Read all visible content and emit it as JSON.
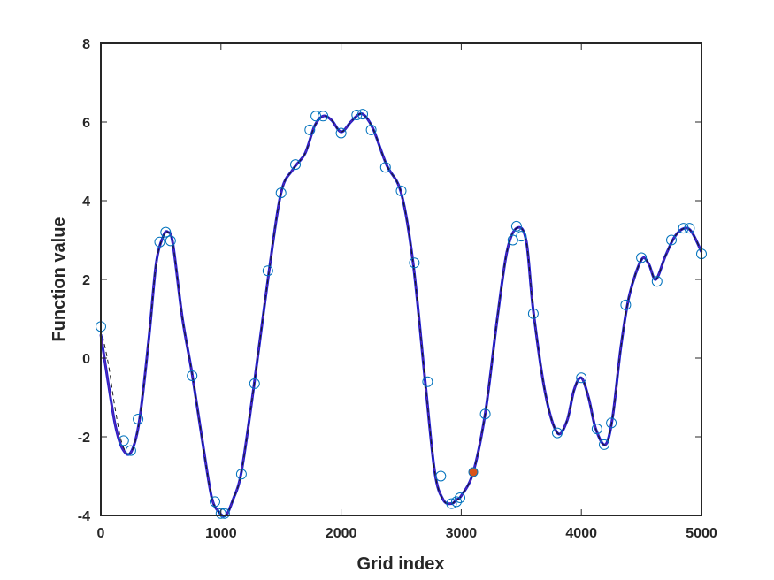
{
  "chart_data": {
    "type": "line",
    "title": "",
    "xlabel": "Grid index",
    "ylabel": "Function value",
    "xlim": [
      0,
      5000
    ],
    "ylim": [
      -4,
      8
    ],
    "xticks": [
      0,
      1000,
      2000,
      3000,
      4000,
      5000
    ],
    "yticks": [
      -4,
      -2,
      0,
      2,
      4,
      6,
      8
    ],
    "grid": false,
    "legend": "none",
    "series": [
      {
        "style": "solid",
        "color": "#1f1fd0",
        "x": [
          0,
          60,
          120,
          180,
          250,
          320,
          400,
          460,
          520,
          560,
          600,
          680,
          760,
          840,
          920,
          980,
          1040,
          1100,
          1170,
          1270,
          1400,
          1500,
          1600,
          1700,
          1780,
          1850,
          1920,
          2000,
          2080,
          2150,
          2200,
          2270,
          2380,
          2500,
          2600,
          2700,
          2780,
          2850,
          2920,
          2960,
          3000,
          3100,
          3200,
          3300,
          3380,
          3460,
          3540,
          3600,
          3700,
          3800,
          3880,
          3940,
          4000,
          4060,
          4120,
          4200,
          4260,
          4330,
          4400,
          4500,
          4560,
          4620,
          4700,
          4780,
          4860,
          4920,
          5000
        ],
        "y": [
          0.6,
          -0.6,
          -1.7,
          -2.3,
          -2.4,
          -1.6,
          0.5,
          2.4,
          3.1,
          3.2,
          2.9,
          1.0,
          -0.4,
          -2.0,
          -3.5,
          -3.9,
          -4.0,
          -3.6,
          -2.9,
          -0.8,
          2.2,
          4.2,
          4.8,
          5.2,
          5.9,
          6.15,
          6.05,
          5.75,
          6.0,
          6.2,
          6.15,
          5.8,
          4.9,
          4.2,
          2.4,
          -0.6,
          -2.9,
          -3.6,
          -3.7,
          -3.6,
          -3.5,
          -2.9,
          -1.4,
          1.0,
          2.7,
          3.3,
          3.0,
          1.2,
          -0.9,
          -1.9,
          -1.6,
          -0.8,
          -0.5,
          -1.0,
          -1.8,
          -2.2,
          -1.5,
          0.3,
          1.6,
          2.5,
          2.4,
          2.0,
          2.6,
          3.1,
          3.3,
          3.2,
          2.7
        ]
      },
      {
        "style": "dashed",
        "color": "#1a1a1a",
        "x": [
          0,
          60,
          120,
          180,
          250,
          320,
          400,
          460,
          520,
          560,
          600,
          680,
          760,
          840,
          920,
          980,
          1040,
          1100,
          1170,
          1270,
          1400,
          1500,
          1600,
          1700,
          1780,
          1850,
          1920,
          2000,
          2080,
          2150,
          2200,
          2270,
          2380,
          2500,
          2600,
          2700,
          2780,
          2850,
          2920,
          2960,
          3000,
          3100,
          3200,
          3300,
          3380,
          3460,
          3540,
          3600,
          3700,
          3800,
          3880,
          3940,
          4000,
          4060,
          4120,
          4200,
          4260,
          4330,
          4400,
          4500,
          4560,
          4620,
          4700,
          4780,
          4860,
          4920,
          5000
        ],
        "y": [
          0.75,
          -0.1,
          -1.3,
          -2.2,
          -2.4,
          -1.6,
          0.5,
          2.4,
          3.1,
          3.2,
          2.9,
          1.0,
          -0.4,
          -2.0,
          -3.5,
          -3.9,
          -4.0,
          -3.6,
          -2.9,
          -0.8,
          2.2,
          4.2,
          4.8,
          5.2,
          5.9,
          6.15,
          6.05,
          5.75,
          6.0,
          6.2,
          6.15,
          5.8,
          4.9,
          4.2,
          2.4,
          -0.6,
          -2.9,
          -3.6,
          -3.7,
          -3.6,
          -3.5,
          -2.9,
          -1.4,
          1.0,
          2.7,
          3.3,
          3.0,
          1.2,
          -0.9,
          -1.9,
          -1.6,
          -0.8,
          -0.5,
          -1.0,
          -1.8,
          -2.2,
          -1.5,
          0.3,
          1.6,
          2.5,
          2.4,
          2.0,
          2.6,
          3.1,
          3.3,
          3.2,
          2.7
        ]
      },
      {
        "style": "markers-open-circle",
        "color": "#0072bd",
        "x": [
          0,
          190,
          250,
          310,
          490,
          540,
          580,
          760,
          950,
          1000,
          1030,
          1170,
          1280,
          1390,
          1500,
          1620,
          1740,
          1790,
          1850,
          2000,
          2130,
          2180,
          2250,
          2370,
          2500,
          2610,
          2720,
          2830,
          2920,
          2960,
          2990,
          3200,
          3430,
          3460,
          3500,
          3600,
          3800,
          4000,
          4130,
          4190,
          4250,
          4370,
          4500,
          4630,
          4750,
          4850,
          4900,
          5000
        ],
        "y": [
          0.8,
          -2.1,
          -2.35,
          -1.55,
          2.95,
          3.2,
          2.98,
          -0.45,
          -3.65,
          -3.95,
          -3.95,
          -2.95,
          -0.65,
          2.22,
          4.2,
          4.92,
          5.8,
          6.15,
          6.15,
          5.72,
          6.18,
          6.2,
          5.8,
          4.85,
          4.25,
          2.42,
          -0.6,
          -3.0,
          -3.7,
          -3.65,
          -3.55,
          -1.42,
          3.0,
          3.35,
          3.1,
          1.13,
          -1.9,
          -0.5,
          -1.8,
          -2.2,
          -1.65,
          1.35,
          2.55,
          1.95,
          3.0,
          3.3,
          3.3,
          2.65
        ]
      },
      {
        "style": "marker-filled",
        "color": "#d95319",
        "x": [
          3100
        ],
        "y": [
          -2.9
        ]
      }
    ]
  }
}
